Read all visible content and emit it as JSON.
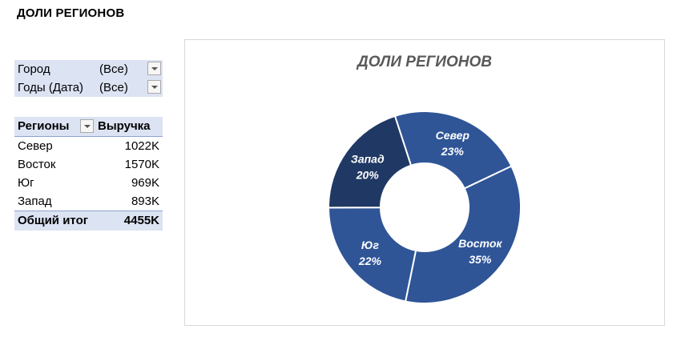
{
  "sheet_title": "ДОЛИ РЕГИОНОВ",
  "filters": [
    {
      "label": "Город",
      "value": "(Все)"
    },
    {
      "label": "Годы (Дата)",
      "value": "(Все)"
    }
  ],
  "pivot": {
    "headers": [
      "Регионы",
      "Выручка"
    ],
    "rows": [
      {
        "region": "Север",
        "revenue": "1022K"
      },
      {
        "region": "Восток",
        "revenue": "1570K"
      },
      {
        "region": "Юг",
        "revenue": "969K"
      },
      {
        "region": "Запад",
        "revenue": "893K"
      }
    ],
    "total": {
      "label": "Общий итог",
      "revenue": "4455K"
    }
  },
  "chart_data": {
    "type": "pie",
    "variant": "doughnut",
    "title": "ДОЛИ РЕГИОНОВ",
    "categories": [
      "Север",
      "Восток",
      "Юг",
      "Запад"
    ],
    "values": [
      1022,
      1570,
      969,
      893
    ],
    "data_labels": [
      "23%",
      "35%",
      "22%",
      "20%"
    ],
    "colors": [
      "#2f5597",
      "#2f5597",
      "#2f5597",
      "#203864"
    ],
    "start_angle_deg": -18
  }
}
